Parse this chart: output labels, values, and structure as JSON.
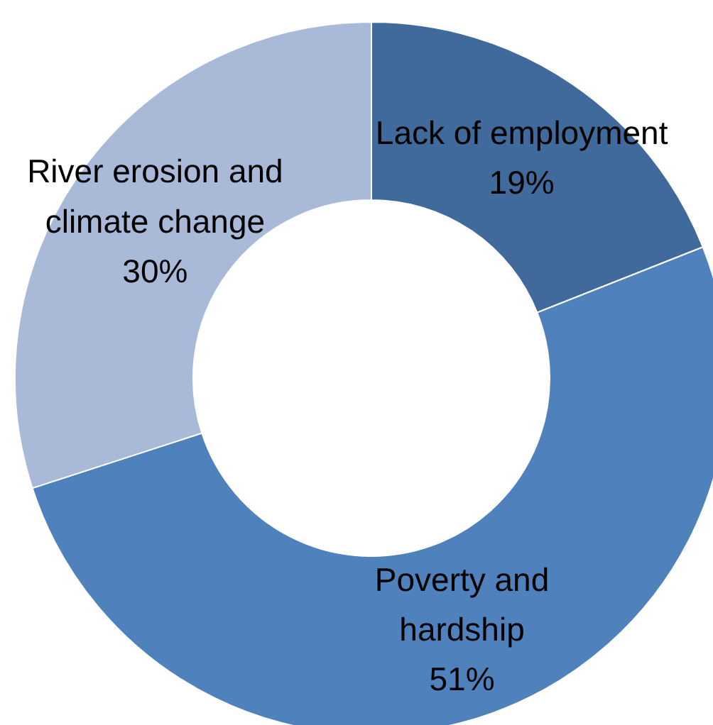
{
  "chart_data": {
    "type": "donut",
    "categories": [
      "Lack of employment",
      "Poverty and hardship",
      "River erosion and climate change"
    ],
    "values": [
      19,
      51,
      30
    ],
    "colors": [
      "#3f6a9b",
      "#4f81bd",
      "#a9b9d8"
    ],
    "value_labels": [
      "19%",
      "51%",
      "30%"
    ]
  }
}
